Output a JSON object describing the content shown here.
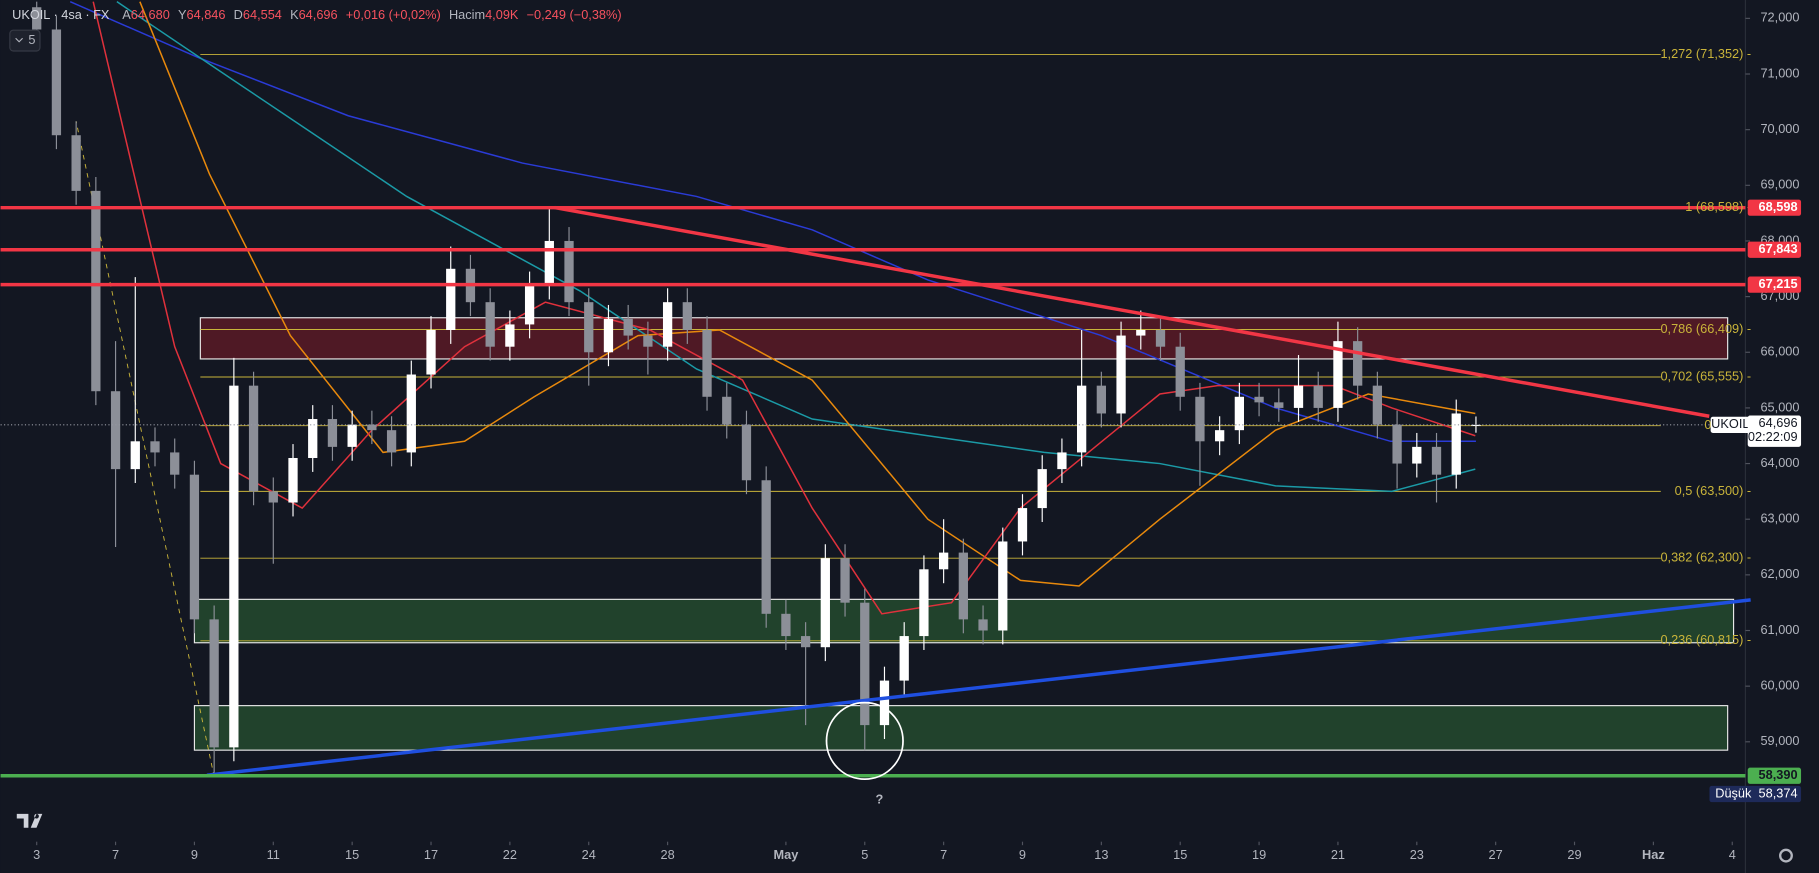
{
  "chart_data": {
    "type": "candlestick",
    "header": {
      "symbol": "UKOIL · 4sa · FX",
      "ohlc": [
        {
          "label": "A",
          "value": "64,680"
        },
        {
          "label": "Y",
          "value": "64,846"
        },
        {
          "label": "D",
          "value": "64,554"
        },
        {
          "label": "K",
          "value": "64,696"
        }
      ],
      "change": "+0,016 (+0,02%)",
      "volume_label": "Hacim",
      "volume": "4,09K",
      "volume_change": "−0,249 (−0,38%)",
      "indicator_count": "5"
    },
    "up_color": "#ffffff",
    "down_color": "#8c8f98",
    "xlim": [
      -5.5,
      260
    ],
    "ylim": [
      57330,
      72330
    ],
    "xticks": [
      {
        "value": 0,
        "label": "3"
      },
      {
        "value": 12,
        "label": "7"
      },
      {
        "value": 24,
        "label": "9"
      },
      {
        "value": 36,
        "label": "11"
      },
      {
        "value": 48,
        "label": "15"
      },
      {
        "value": 60,
        "label": "17"
      },
      {
        "value": 72,
        "label": "22"
      },
      {
        "value": 84,
        "label": "24"
      },
      {
        "value": 96,
        "label": "28"
      },
      {
        "value": 114,
        "label": "May"
      },
      {
        "value": 126,
        "label": "5"
      },
      {
        "value": 138,
        "label": "7"
      },
      {
        "value": 150,
        "label": "9"
      },
      {
        "value": 162,
        "label": "13"
      },
      {
        "value": 174,
        "label": "15"
      },
      {
        "value": 186,
        "label": "19"
      },
      {
        "value": 198,
        "label": "21"
      },
      {
        "value": 210,
        "label": "23"
      },
      {
        "value": 222,
        "label": "27"
      },
      {
        "value": 234,
        "label": "29"
      },
      {
        "value": 246,
        "label": "Haz"
      },
      {
        "value": 258,
        "label": "4"
      }
    ],
    "yticks": [
      {
        "value": 59000,
        "label": "59,000"
      },
      {
        "value": 60000,
        "label": "60,000"
      },
      {
        "value": 61000,
        "label": "61,000"
      },
      {
        "value": 62000,
        "label": "62,000"
      },
      {
        "value": 63000,
        "label": "63,000"
      },
      {
        "value": 64000,
        "label": "64,000"
      },
      {
        "value": 65000,
        "label": "65,000"
      },
      {
        "value": 66000,
        "label": "66,000"
      },
      {
        "value": 67000,
        "label": "67,000"
      },
      {
        "value": 68000,
        "label": "68,000"
      },
      {
        "value": 69000,
        "label": "69,000"
      },
      {
        "value": 70000,
        "label": "70,000"
      },
      {
        "value": 71000,
        "label": "71,000"
      },
      {
        "value": 72000,
        "label": "72,000"
      }
    ],
    "x": [
      0,
      3,
      6,
      9,
      12,
      15,
      18,
      21,
      24,
      27,
      30,
      33,
      36,
      39,
      42,
      45,
      48,
      51,
      54,
      57,
      60,
      63,
      66,
      69,
      72,
      75,
      78,
      81,
      84,
      87,
      90,
      93,
      96,
      99,
      102,
      105,
      108,
      111,
      114,
      117,
      120,
      123,
      126,
      129,
      132,
      135,
      138,
      141,
      144,
      147,
      150,
      153,
      156,
      159,
      162,
      165,
      168,
      171,
      174,
      177,
      180,
      183,
      186,
      189,
      192,
      195,
      198,
      201,
      204,
      207,
      210,
      213,
      216,
      219
    ],
    "open": [
      72200,
      71800,
      69900,
      68900,
      65300,
      63900,
      64400,
      64200,
      63800,
      61200,
      58900,
      65400,
      63500,
      63300,
      64100,
      64800,
      64300,
      64700,
      64600,
      64200,
      65600,
      66400,
      67500,
      66900,
      66100,
      66500,
      67200,
      68000,
      66900,
      66000,
      66600,
      66300,
      66100,
      66900,
      66400,
      65200,
      64700,
      63700,
      61300,
      60900,
      60700,
      62300,
      61500,
      59300,
      60100,
      60900,
      62100,
      62400,
      61200,
      61000,
      62600,
      63200,
      63900,
      64200,
      65400,
      64900,
      66300,
      66400,
      66100,
      65200,
      64400,
      64600,
      65200,
      65100,
      65000,
      65400,
      65000,
      66200,
      65400,
      64700,
      64000,
      64300,
      63800,
      64680
    ],
    "high": [
      72300,
      72050,
      70150,
      69150,
      66200,
      67350,
      64650,
      64450,
      64050,
      61450,
      65900,
      65650,
      63750,
      64350,
      65050,
      65050,
      64950,
      64950,
      64850,
      65850,
      66650,
      67900,
      67750,
      67150,
      66750,
      67450,
      68598,
      68250,
      67150,
      66850,
      66850,
      66550,
      67150,
      67150,
      66650,
      65450,
      64950,
      63950,
      61550,
      61150,
      62550,
      62550,
      61750,
      60350,
      61150,
      62350,
      63000,
      62650,
      61450,
      62850,
      63450,
      64150,
      64450,
      66400,
      65650,
      66550,
      66750,
      66650,
      66350,
      65450,
      64850,
      65450,
      65450,
      65350,
      65950,
      65650,
      66550,
      66450,
      65650,
      64950,
      64550,
      64550,
      65150,
      64846
    ],
    "low": [
      71550,
      69650,
      68650,
      65050,
      62500,
      63650,
      63950,
      63550,
      60950,
      58374,
      58650,
      63250,
      62200,
      63050,
      63850,
      64050,
      64050,
      64350,
      63950,
      63950,
      65350,
      66150,
      66650,
      65850,
      65850,
      66250,
      66950,
      66650,
      65400,
      65750,
      66050,
      65600,
      65850,
      66150,
      64950,
      64450,
      63450,
      61050,
      60650,
      59300,
      60450,
      61250,
      58850,
      59050,
      59850,
      60650,
      61850,
      60950,
      60750,
      60750,
      62350,
      62950,
      63650,
      63950,
      64650,
      64650,
      66050,
      65850,
      64950,
      63600,
      64150,
      64350,
      64850,
      64750,
      64750,
      64750,
      64750,
      65150,
      64450,
      63550,
      63750,
      63300,
      63550,
      64554
    ],
    "close": [
      71800,
      69900,
      68900,
      65300,
      63900,
      64400,
      64200,
      63800,
      61200,
      58900,
      65400,
      63500,
      63300,
      64100,
      64800,
      64300,
      64700,
      64600,
      64200,
      65600,
      66400,
      67500,
      66900,
      66100,
      66500,
      67200,
      68000,
      66900,
      66000,
      66600,
      66300,
      66100,
      66900,
      66400,
      65200,
      64700,
      63700,
      61300,
      60900,
      60700,
      62300,
      61500,
      59300,
      60100,
      60900,
      62100,
      62400,
      61200,
      61000,
      62600,
      63200,
      63900,
      64200,
      65400,
      64900,
      66300,
      66400,
      66100,
      65200,
      64400,
      64600,
      65200,
      65100,
      65000,
      65400,
      65000,
      66200,
      65400,
      64700,
      64000,
      64300,
      63800,
      64900,
      64696
    ],
    "indicators": [
      {
        "color": "#2a3bd6",
        "x": [
          5.1,
          24.5,
          47.4,
          73.9,
          100.4,
          118,
          135.6,
          162,
          188.5,
          206,
          219
        ],
        "values": [
          72300,
          71300,
          70250,
          69400,
          68800,
          68200,
          67300,
          66300,
          65000,
          64400,
          64400
        ]
      },
      {
        "color": "#1b9aa6",
        "x": [
          12.2,
          29.8,
          56.3,
          82.7,
          100.4,
          118,
          135.6,
          153.3,
          170.9,
          188.5,
          206.2,
          218.9
        ],
        "values": [
          72300,
          70900,
          68800,
          67100,
          65700,
          64800,
          64500,
          64200,
          64000,
          63600,
          63500,
          63900
        ]
      },
      {
        "color": "#e8890c",
        "x": [
          15.7,
          26.3,
          38.6,
          52.7,
          65.1,
          75.7,
          91.5,
          103.9,
          118,
          135.6,
          149.7,
          158.6,
          170.9,
          188.5,
          202.6,
          218.9
        ],
        "values": [
          72300,
          69200,
          66300,
          64200,
          64400,
          65200,
          66300,
          66400,
          65500,
          63000,
          61900,
          61800,
          63000,
          64600,
          65250,
          64900
        ]
      },
      {
        "color": "#e0313c",
        "x": [
          8.6,
          21,
          28,
          40.4,
          51,
          65.1,
          77.4,
          93.3,
          107.4,
          118,
          128.6,
          139.2,
          149.7,
          162.1,
          170.9,
          179.7,
          197.4,
          206.2,
          218.9
        ],
        "values": [
          72300,
          66100,
          64000,
          63200,
          64600,
          66100,
          66900,
          66400,
          65500,
          63200,
          61300,
          61500,
          63200,
          64400,
          65250,
          65400,
          65400,
          65000,
          64500
        ]
      }
    ],
    "zones": [
      {
        "x": [
          24.9,
          257.3
        ],
        "y": [
          65880,
          66620
        ],
        "color": "#5a1a26"
      },
      {
        "x": [
          24,
          258.2
        ],
        "y": [
          60780,
          61560
        ],
        "color": "#244a2e"
      },
      {
        "x": [
          24,
          257.3
        ],
        "y": [
          58850,
          59650
        ],
        "color": "#244a2e"
      }
    ],
    "trendlines": [
      {
        "x": [
          78.8,
          254.5
        ],
        "y": [
          68600,
          64850
        ],
        "color": "#f23645"
      },
      {
        "x": [
          25.9,
          260.8
        ],
        "y": [
          58400,
          61550
        ],
        "color": "#1f4fe0"
      }
    ],
    "fib_levels": [
      {
        "value": 71352,
        "label": "1,272 (71,352) -"
      },
      {
        "value": 68598,
        "label": "1 (68,598) -"
      },
      {
        "value": 66409,
        "label": "0,786 (66,409) -"
      },
      {
        "value": 65555,
        "label": "0,702 (65,555) -"
      },
      {
        "value": 64680,
        "label": "0,618 (6"
      },
      {
        "value": 63500,
        "label": "0,5 (63,500) -"
      },
      {
        "value": 62300,
        "label": "0,382 (62,300) -"
      },
      {
        "value": 60815,
        "label": "0,236 (60,815) -"
      }
    ],
    "fib_color": "#c9b43a",
    "resistance_levels": [
      {
        "value": 68598,
        "label": "68,598"
      },
      {
        "value": 67843,
        "label": "67,843"
      },
      {
        "value": 67215,
        "label": "67,215"
      }
    ],
    "resistance_color": "#f23645",
    "support_level": {
      "value": 58390,
      "label": "58,390"
    },
    "support_color": "#4caf50",
    "low_badge": {
      "name": "Düşük",
      "value": 58374,
      "label": "58,374"
    },
    "last_price": {
      "symbol": "UKOIL",
      "value": 64696,
      "label": "64,696",
      "countdown": "02:22:09"
    },
    "annotation": "?"
  }
}
